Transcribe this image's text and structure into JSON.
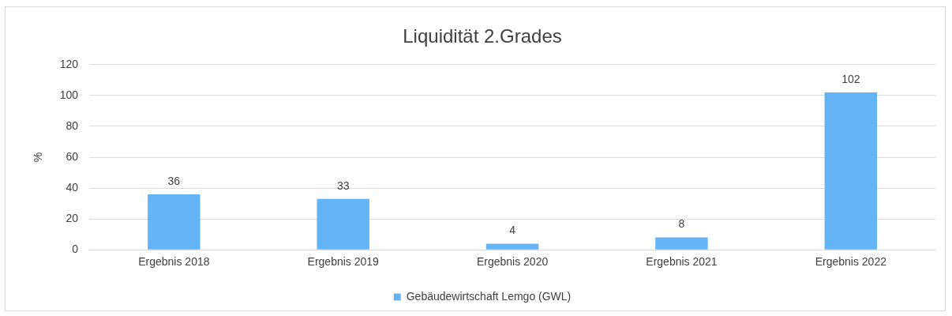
{
  "chart_data": {
    "type": "bar",
    "title": "Liquidität 2.Grades",
    "ylabel": "%",
    "categories": [
      "Ergebnis 2018",
      "Ergebnis 2019",
      "Ergebnis 2020",
      "Ergebnis 2021",
      "Ergebnis 2022"
    ],
    "series": [
      {
        "name": "Gebäudewirtschaft Lemgo (GWL)",
        "color": "#63b4f6",
        "values": [
          36,
          33,
          4,
          8,
          102
        ]
      }
    ],
    "ylim": [
      0,
      120
    ],
    "yticks": [
      0,
      20,
      40,
      60,
      80,
      100,
      120
    ],
    "grid": "y",
    "legend": "bottom",
    "data_labels": true
  }
}
